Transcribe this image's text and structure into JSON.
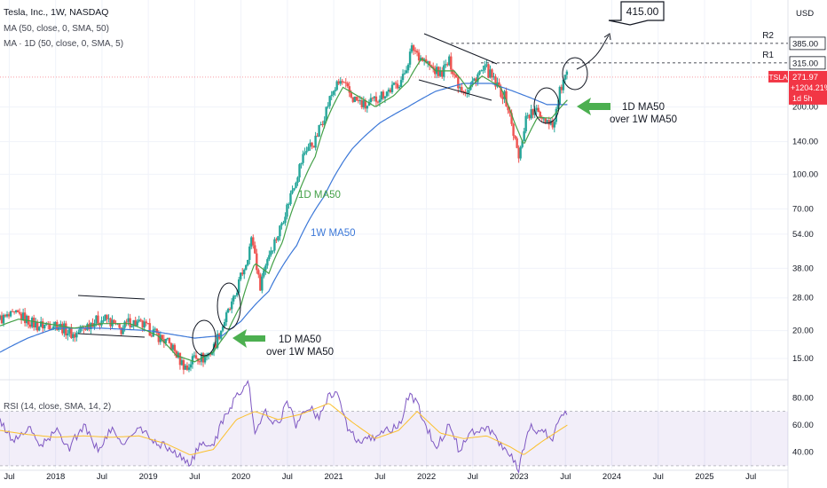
{
  "header": {
    "symbol_title": "Tesla, Inc., 1W, NASDAQ",
    "ma_weekly": "MA (50, close, 0, SMA, 50)",
    "ma_daily": "MA · 1D (50, close, 0, SMA, 5)",
    "rsi": "RSI (14, close, SMA, 14, 2)"
  },
  "currency": "USD",
  "colors": {
    "bull": "#26a69a",
    "bear": "#ef5350",
    "ma_weekly": "#3c78d8",
    "ma_daily": "#43a047",
    "rsi_line": "#7e57c2",
    "rsi_ma": "#fbc02d",
    "arrow": "#4caf50",
    "price_badge": "#f23645"
  },
  "annotations": {
    "target": "415.00",
    "r2": "R2",
    "r1": "R1",
    "lbl_385": "385.00",
    "lbl_315": "315.00",
    "ticker": "TSLA",
    "last_price": "271.97",
    "change": "+1204.21%",
    "countdown": "1d 5h",
    "d_ma50": "1D MA50",
    "w_ma50": "1W MA50",
    "cross_1_line1": "1D MA50",
    "cross_1_line2": "over 1W MA50",
    "cross_2_line1": "1D MA50",
    "cross_2_line2": "over 1W MA50"
  },
  "chart_data": [
    {
      "type": "candlestick",
      "title": "Tesla, Inc., 1W, NASDAQ",
      "y_scale": "log",
      "ylim": [
        11,
        520
      ],
      "y_ticks": [
        "200.00",
        "140.00",
        "100.00",
        "70.00",
        "54.00",
        "38.00",
        "28.00",
        "20.00",
        "15.00"
      ],
      "x_ticks": [
        "Jul",
        "2018",
        "Jul",
        "2019",
        "Jul",
        "2020",
        "Jul",
        "2021",
        "Jul",
        "2022",
        "Jul",
        "2023",
        "Jul",
        "2024",
        "Jul",
        "2025",
        "Jul"
      ],
      "x_tick_times": [
        2017.5,
        2018.0,
        2018.5,
        2019.0,
        2019.5,
        2020.0,
        2020.5,
        2021.0,
        2021.5,
        2022.0,
        2022.5,
        2023.0,
        2023.5,
        2024.0,
        2024.5,
        2025.0,
        2025.5
      ],
      "xlim": [
        2017.4,
        2025.9
      ],
      "anchors": [
        [
          2017.4,
          22.5
        ],
        [
          2017.6,
          23.5
        ],
        [
          2017.8,
          21
        ],
        [
          2018.0,
          21.5
        ],
        [
          2018.2,
          19
        ],
        [
          2018.4,
          22
        ],
        [
          2018.55,
          22.5
        ],
        [
          2018.7,
          20
        ],
        [
          2018.8,
          22
        ],
        [
          2018.95,
          21
        ],
        [
          2019.1,
          19
        ],
        [
          2019.25,
          17
        ],
        [
          2019.35,
          14.5
        ],
        [
          2019.42,
          13.5
        ],
        [
          2019.5,
          15.5
        ],
        [
          2019.6,
          15
        ],
        [
          2019.7,
          16.5
        ],
        [
          2019.8,
          21
        ],
        [
          2019.92,
          27
        ],
        [
          2020.05,
          40
        ],
        [
          2020.12,
          52
        ],
        [
          2020.2,
          31
        ],
        [
          2020.28,
          42
        ],
        [
          2020.4,
          54
        ],
        [
          2020.5,
          72
        ],
        [
          2020.6,
          98
        ],
        [
          2020.7,
          130
        ],
        [
          2020.8,
          140
        ],
        [
          2020.9,
          185
        ],
        [
          2021.0,
          240
        ],
        [
          2021.08,
          260
        ],
        [
          2021.2,
          220
        ],
        [
          2021.35,
          200
        ],
        [
          2021.5,
          225
        ],
        [
          2021.65,
          245
        ],
        [
          2021.75,
          270
        ],
        [
          2021.85,
          370
        ],
        [
          2021.95,
          330
        ],
        [
          2022.05,
          300
        ],
        [
          2022.15,
          280
        ],
        [
          2022.25,
          320
        ],
        [
          2022.35,
          250
        ],
        [
          2022.45,
          235
        ],
        [
          2022.55,
          280
        ],
        [
          2022.65,
          295
        ],
        [
          2022.75,
          250
        ],
        [
          2022.85,
          220
        ],
        [
          2022.95,
          145
        ],
        [
          2023.0,
          115
        ],
        [
          2023.08,
          185
        ],
        [
          2023.2,
          190
        ],
        [
          2023.3,
          175
        ],
        [
          2023.38,
          170
        ],
        [
          2023.45,
          245
        ],
        [
          2023.52,
          275
        ]
      ],
      "ma_weekly_anchors": [
        [
          2017.4,
          16
        ],
        [
          2017.7,
          18.5
        ],
        [
          2018.0,
          20.5
        ],
        [
          2018.5,
          20.5
        ],
        [
          2019.0,
          20
        ],
        [
          2019.5,
          18.5
        ],
        [
          2019.8,
          19
        ],
        [
          2020.0,
          22
        ],
        [
          2020.3,
          30
        ],
        [
          2020.6,
          48
        ],
        [
          2020.9,
          80
        ],
        [
          2021.2,
          130
        ],
        [
          2021.5,
          170
        ],
        [
          2021.8,
          200
        ],
        [
          2022.1,
          235
        ],
        [
          2022.4,
          255
        ],
        [
          2022.7,
          255
        ],
        [
          2023.0,
          230
        ],
        [
          2023.3,
          205
        ],
        [
          2023.52,
          205
        ]
      ],
      "ma_daily_anchors": [
        [
          2017.4,
          21
        ],
        [
          2017.6,
          22.5
        ],
        [
          2017.9,
          21.5
        ],
        [
          2018.2,
          20.5
        ],
        [
          2018.5,
          21.5
        ],
        [
          2018.8,
          21.5
        ],
        [
          2019.1,
          19
        ],
        [
          2019.3,
          15.5
        ],
        [
          2019.5,
          14.5
        ],
        [
          2019.7,
          16
        ],
        [
          2019.85,
          19.5
        ],
        [
          2020.0,
          26
        ],
        [
          2020.15,
          40
        ],
        [
          2020.3,
          36
        ],
        [
          2020.45,
          50
        ],
        [
          2020.6,
          78
        ],
        [
          2020.8,
          120
        ],
        [
          2020.95,
          185
        ],
        [
          2021.1,
          245
        ],
        [
          2021.25,
          225
        ],
        [
          2021.45,
          200
        ],
        [
          2021.65,
          225
        ],
        [
          2021.8,
          260
        ],
        [
          2021.95,
          330
        ],
        [
          2022.1,
          290
        ],
        [
          2022.3,
          290
        ],
        [
          2022.45,
          240
        ],
        [
          2022.6,
          275
        ],
        [
          2022.8,
          245
        ],
        [
          2022.95,
          170
        ],
        [
          2023.05,
          135
        ],
        [
          2023.2,
          180
        ],
        [
          2023.35,
          178
        ],
        [
          2023.52,
          215
        ]
      ],
      "levels": [
        {
          "label": "R2",
          "value": 385
        },
        {
          "label": "R1",
          "value": 315
        },
        {
          "label": "target",
          "value": 415
        }
      ],
      "series": [
        {
          "name": "MA (50, close, 0, SMA, 50)"
        },
        {
          "name": "MA · 1D (50, close, 0, SMA, 5)"
        }
      ]
    },
    {
      "type": "line",
      "title": "RSI (14, close, SMA, 14, 2)",
      "ylim": [
        28,
        92
      ],
      "y_ticks": [
        "80.00",
        "60.00",
        "40.00"
      ],
      "band": [
        30,
        70
      ],
      "rsi_anchors": [
        [
          2017.4,
          62
        ],
        [
          2017.55,
          48
        ],
        [
          2017.7,
          58
        ],
        [
          2017.85,
          44
        ],
        [
          2018.0,
          56
        ],
        [
          2018.15,
          44
        ],
        [
          2018.3,
          60
        ],
        [
          2018.45,
          42
        ],
        [
          2018.6,
          56
        ],
        [
          2018.75,
          46
        ],
        [
          2018.9,
          58
        ],
        [
          2019.05,
          48
        ],
        [
          2019.2,
          44
        ],
        [
          2019.35,
          36
        ],
        [
          2019.45,
          32
        ],
        [
          2019.55,
          44
        ],
        [
          2019.7,
          46
        ],
        [
          2019.8,
          62
        ],
        [
          2019.95,
          82
        ],
        [
          2020.08,
          92
        ],
        [
          2020.15,
          52
        ],
        [
          2020.25,
          70
        ],
        [
          2020.4,
          60
        ],
        [
          2020.5,
          78
        ],
        [
          2020.6,
          58
        ],
        [
          2020.7,
          74
        ],
        [
          2020.85,
          66
        ],
        [
          2020.95,
          84
        ],
        [
          2021.05,
          82
        ],
        [
          2021.15,
          56
        ],
        [
          2021.3,
          46
        ],
        [
          2021.4,
          50
        ],
        [
          2021.55,
          56
        ],
        [
          2021.7,
          58
        ],
        [
          2021.82,
          84
        ],
        [
          2021.9,
          76
        ],
        [
          2022.0,
          58
        ],
        [
          2022.1,
          44
        ],
        [
          2022.25,
          60
        ],
        [
          2022.35,
          42
        ],
        [
          2022.5,
          56
        ],
        [
          2022.65,
          58
        ],
        [
          2022.8,
          46
        ],
        [
          2022.95,
          34
        ],
        [
          2023.0,
          28
        ],
        [
          2023.1,
          58
        ],
        [
          2023.25,
          56
        ],
        [
          2023.35,
          48
        ],
        [
          2023.45,
          70
        ],
        [
          2023.52,
          70
        ]
      ],
      "rsi_ma_anchors": [
        [
          2017.4,
          56
        ],
        [
          2017.7,
          53
        ],
        [
          2018.0,
          51
        ],
        [
          2018.3,
          52
        ],
        [
          2018.6,
          51
        ],
        [
          2018.9,
          52
        ],
        [
          2019.2,
          46
        ],
        [
          2019.45,
          38
        ],
        [
          2019.7,
          42
        ],
        [
          2019.95,
          64
        ],
        [
          2020.15,
          70
        ],
        [
          2020.4,
          64
        ],
        [
          2020.65,
          68
        ],
        [
          2020.95,
          76
        ],
        [
          2021.2,
          62
        ],
        [
          2021.45,
          50
        ],
        [
          2021.7,
          56
        ],
        [
          2021.9,
          70
        ],
        [
          2022.15,
          54
        ],
        [
          2022.4,
          50
        ],
        [
          2022.65,
          52
        ],
        [
          2022.9,
          44
        ],
        [
          2023.05,
          38
        ],
        [
          2023.25,
          48
        ],
        [
          2023.52,
          60
        ]
      ]
    }
  ]
}
